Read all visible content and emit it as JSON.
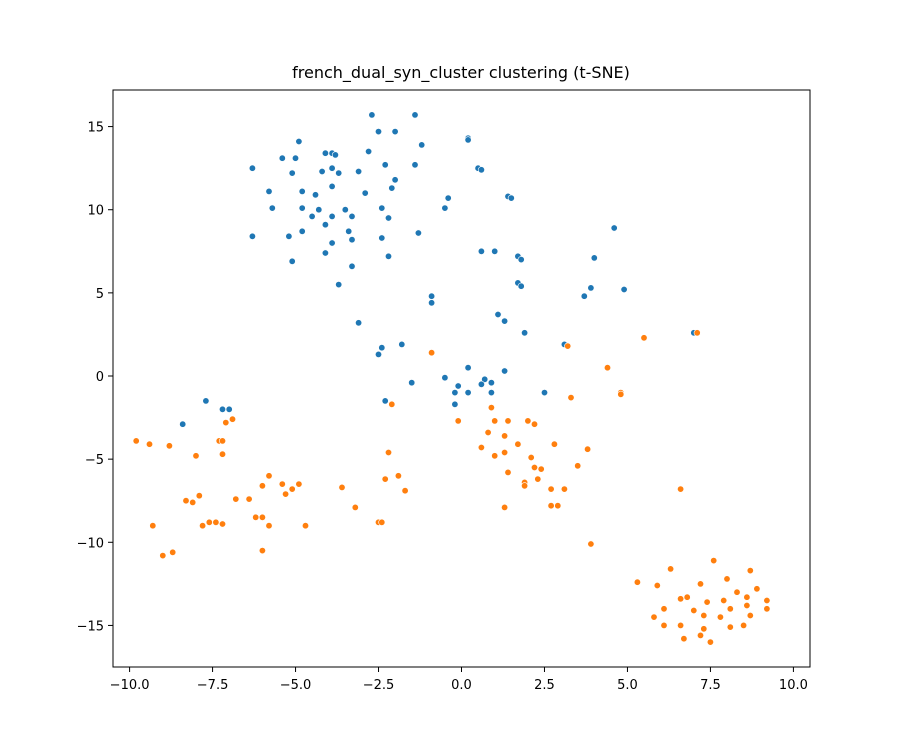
{
  "chart_data": {
    "type": "scatter",
    "title": "french_dual_syn_cluster clustering (t-SNE)",
    "xlabel": "",
    "ylabel": "",
    "xlim": [
      -10.5,
      10.5
    ],
    "ylim": [
      -17.5,
      17.2
    ],
    "xticks": [
      -10.0,
      -7.5,
      -5.0,
      -2.5,
      0.0,
      2.5,
      5.0,
      7.5,
      10.0
    ],
    "xtick_labels": [
      "−10.0",
      "−7.5",
      "−5.0",
      "−2.5",
      "0.0",
      "2.5",
      "5.0",
      "7.5",
      "10.0"
    ],
    "yticks": [
      15,
      10,
      5,
      0,
      -5,
      -10,
      -15
    ],
    "ytick_labels": [
      "15",
      "10",
      "5",
      "0",
      "−5",
      "−10",
      "−15"
    ],
    "grid": false,
    "series": [
      {
        "color": "#1f77b4",
        "points": [
          [
            -2.7,
            15.7
          ],
          [
            -1.4,
            15.7
          ],
          [
            -2.5,
            14.7
          ],
          [
            -2.0,
            14.7
          ],
          [
            -4.9,
            14.1
          ],
          [
            -1.2,
            13.9
          ],
          [
            0.2,
            14.3
          ],
          [
            0.2,
            14.2
          ],
          [
            -5.4,
            13.1
          ],
          [
            -5.0,
            13.1
          ],
          [
            -4.1,
            13.4
          ],
          [
            -3.9,
            13.4
          ],
          [
            -3.8,
            13.3
          ],
          [
            -2.8,
            13.5
          ],
          [
            -2.3,
            12.7
          ],
          [
            -1.4,
            12.7
          ],
          [
            -6.3,
            12.5
          ],
          [
            -5.1,
            12.2
          ],
          [
            -4.2,
            12.3
          ],
          [
            -3.9,
            12.5
          ],
          [
            -3.7,
            12.2
          ],
          [
            -3.1,
            12.3
          ],
          [
            0.5,
            12.5
          ],
          [
            0.6,
            12.4
          ],
          [
            -2.0,
            11.8
          ],
          [
            -3.9,
            11.4
          ],
          [
            -5.8,
            11.1
          ],
          [
            -4.8,
            11.1
          ],
          [
            -4.4,
            10.9
          ],
          [
            -2.9,
            11.0
          ],
          [
            -2.1,
            11.3
          ],
          [
            1.4,
            10.8
          ],
          [
            1.5,
            10.7
          ],
          [
            -0.4,
            10.7
          ],
          [
            -5.7,
            10.1
          ],
          [
            -4.8,
            10.1
          ],
          [
            -4.3,
            10.0
          ],
          [
            -3.5,
            10.0
          ],
          [
            -2.4,
            10.1
          ],
          [
            -0.5,
            10.1
          ],
          [
            -4.5,
            9.6
          ],
          [
            -3.9,
            9.6
          ],
          [
            -3.3,
            9.6
          ],
          [
            -2.2,
            9.5
          ],
          [
            -4.1,
            9.1
          ],
          [
            -4.8,
            8.7
          ],
          [
            -3.4,
            8.7
          ],
          [
            -6.3,
            8.4
          ],
          [
            -5.2,
            8.4
          ],
          [
            -3.9,
            8.0
          ],
          [
            -3.3,
            8.2
          ],
          [
            -2.4,
            8.3
          ],
          [
            -1.3,
            8.6
          ],
          [
            -4.1,
            7.4
          ],
          [
            -2.2,
            7.2
          ],
          [
            0.6,
            7.5
          ],
          [
            1.0,
            7.5
          ],
          [
            1.7,
            7.2
          ],
          [
            1.8,
            7.0
          ],
          [
            4.0,
            7.1
          ],
          [
            4.6,
            8.9
          ],
          [
            -5.1,
            6.9
          ],
          [
            -3.3,
            6.6
          ],
          [
            -3.7,
            5.5
          ],
          [
            1.7,
            5.6
          ],
          [
            1.8,
            5.4
          ],
          [
            3.9,
            5.3
          ],
          [
            3.7,
            4.8
          ],
          [
            4.9,
            5.2
          ],
          [
            -0.9,
            4.8
          ],
          [
            -0.9,
            4.4
          ],
          [
            1.1,
            3.7
          ],
          [
            1.3,
            3.3
          ],
          [
            -3.1,
            3.2
          ],
          [
            1.9,
            2.6
          ],
          [
            7.0,
            2.6
          ],
          [
            3.1,
            1.9
          ],
          [
            -1.8,
            1.9
          ],
          [
            -2.4,
            1.7
          ],
          [
            -2.5,
            1.3
          ],
          [
            0.2,
            0.5
          ],
          [
            1.3,
            0.3
          ],
          [
            -1.5,
            -0.4
          ],
          [
            -0.5,
            -0.1
          ],
          [
            -0.1,
            -0.6
          ],
          [
            0.7,
            -0.2
          ],
          [
            0.9,
            -0.4
          ],
          [
            0.6,
            -0.5
          ],
          [
            -0.2,
            -1.0
          ],
          [
            0.2,
            -1.0
          ],
          [
            0.9,
            -1.0
          ],
          [
            2.5,
            -1.0
          ],
          [
            -0.2,
            -1.7
          ],
          [
            -2.3,
            -1.5
          ],
          [
            -7.7,
            -1.5
          ],
          [
            -7.2,
            -2.0
          ],
          [
            -7.0,
            -2.0
          ],
          [
            -8.4,
            -2.9
          ]
        ]
      },
      {
        "color": "#ff7f0e",
        "points": [
          [
            5.5,
            2.3
          ],
          [
            7.1,
            2.6
          ],
          [
            3.2,
            1.8
          ],
          [
            -0.9,
            1.4
          ],
          [
            4.4,
            0.5
          ],
          [
            4.8,
            -1.0
          ],
          [
            4.8,
            -1.1
          ],
          [
            3.3,
            -1.3
          ],
          [
            -2.1,
            -1.7
          ],
          [
            0.9,
            -1.9
          ],
          [
            -0.1,
            -2.7
          ],
          [
            1.0,
            -2.7
          ],
          [
            1.4,
            -2.7
          ],
          [
            2.0,
            -2.7
          ],
          [
            2.2,
            -2.9
          ],
          [
            -6.9,
            -2.6
          ],
          [
            -7.1,
            -2.8
          ],
          [
            0.8,
            -3.4
          ],
          [
            1.3,
            -3.6
          ],
          [
            -9.8,
            -3.9
          ],
          [
            -9.4,
            -4.1
          ],
          [
            -7.3,
            -3.9
          ],
          [
            -7.2,
            -3.9
          ],
          [
            -8.8,
            -4.2
          ],
          [
            1.7,
            -4.1
          ],
          [
            2.8,
            -4.1
          ],
          [
            3.8,
            -4.4
          ],
          [
            0.6,
            -4.3
          ],
          [
            1.3,
            -4.6
          ],
          [
            -2.2,
            -4.6
          ],
          [
            -8.0,
            -4.8
          ],
          [
            -7.2,
            -4.7
          ],
          [
            1.0,
            -4.8
          ],
          [
            2.1,
            -4.9
          ],
          [
            2.2,
            -5.5
          ],
          [
            2.4,
            -5.6
          ],
          [
            3.5,
            -5.4
          ],
          [
            1.4,
            -5.8
          ],
          [
            -1.9,
            -6.0
          ],
          [
            -2.3,
            -6.2
          ],
          [
            -5.8,
            -6.0
          ],
          [
            -5.4,
            -6.5
          ],
          [
            -6.0,
            -6.6
          ],
          [
            -5.1,
            -6.8
          ],
          [
            -4.9,
            -6.5
          ],
          [
            -3.6,
            -6.7
          ],
          [
            1.9,
            -6.4
          ],
          [
            1.9,
            -6.6
          ],
          [
            2.3,
            -6.2
          ],
          [
            2.7,
            -6.8
          ],
          [
            3.1,
            -6.8
          ],
          [
            6.6,
            -6.8
          ],
          [
            -7.9,
            -7.2
          ],
          [
            -1.7,
            -6.9
          ],
          [
            -6.8,
            -7.4
          ],
          [
            -6.4,
            -7.4
          ],
          [
            -5.3,
            -7.1
          ],
          [
            -8.3,
            -7.5
          ],
          [
            -8.1,
            -7.6
          ],
          [
            -3.2,
            -7.9
          ],
          [
            1.3,
            -7.9
          ],
          [
            2.7,
            -7.8
          ],
          [
            2.9,
            -7.8
          ],
          [
            -6.2,
            -8.5
          ],
          [
            -6.0,
            -8.5
          ],
          [
            -2.5,
            -8.8
          ],
          [
            -2.4,
            -8.8
          ],
          [
            -7.6,
            -8.8
          ],
          [
            -7.4,
            -8.8
          ],
          [
            -7.2,
            -8.9
          ],
          [
            -7.8,
            -9.0
          ],
          [
            -5.8,
            -9.0
          ],
          [
            -4.7,
            -9.0
          ],
          [
            -9.3,
            -9.0
          ],
          [
            3.9,
            -10.1
          ],
          [
            -6.0,
            -10.5
          ],
          [
            -9.0,
            -10.8
          ],
          [
            -8.7,
            -10.6
          ],
          [
            7.6,
            -11.1
          ],
          [
            8.7,
            -11.7
          ],
          [
            6.3,
            -11.6
          ],
          [
            5.3,
            -12.4
          ],
          [
            5.9,
            -12.6
          ],
          [
            7.2,
            -12.5
          ],
          [
            8.0,
            -12.2
          ],
          [
            8.9,
            -12.8
          ],
          [
            6.6,
            -13.4
          ],
          [
            6.8,
            -13.3
          ],
          [
            7.4,
            -13.6
          ],
          [
            7.9,
            -13.5
          ],
          [
            8.3,
            -13.0
          ],
          [
            8.6,
            -13.3
          ],
          [
            9.2,
            -13.5
          ],
          [
            6.1,
            -14.0
          ],
          [
            7.0,
            -14.1
          ],
          [
            7.3,
            -14.4
          ],
          [
            7.8,
            -14.5
          ],
          [
            8.1,
            -14.0
          ],
          [
            8.6,
            -13.8
          ],
          [
            8.7,
            -14.4
          ],
          [
            9.2,
            -14.0
          ],
          [
            5.8,
            -14.5
          ],
          [
            6.1,
            -15.0
          ],
          [
            6.6,
            -15.0
          ],
          [
            7.3,
            -15.2
          ],
          [
            7.2,
            -15.6
          ],
          [
            8.1,
            -15.1
          ],
          [
            8.5,
            -15.0
          ],
          [
            6.7,
            -15.8
          ],
          [
            7.5,
            -16.0
          ]
        ]
      }
    ]
  }
}
